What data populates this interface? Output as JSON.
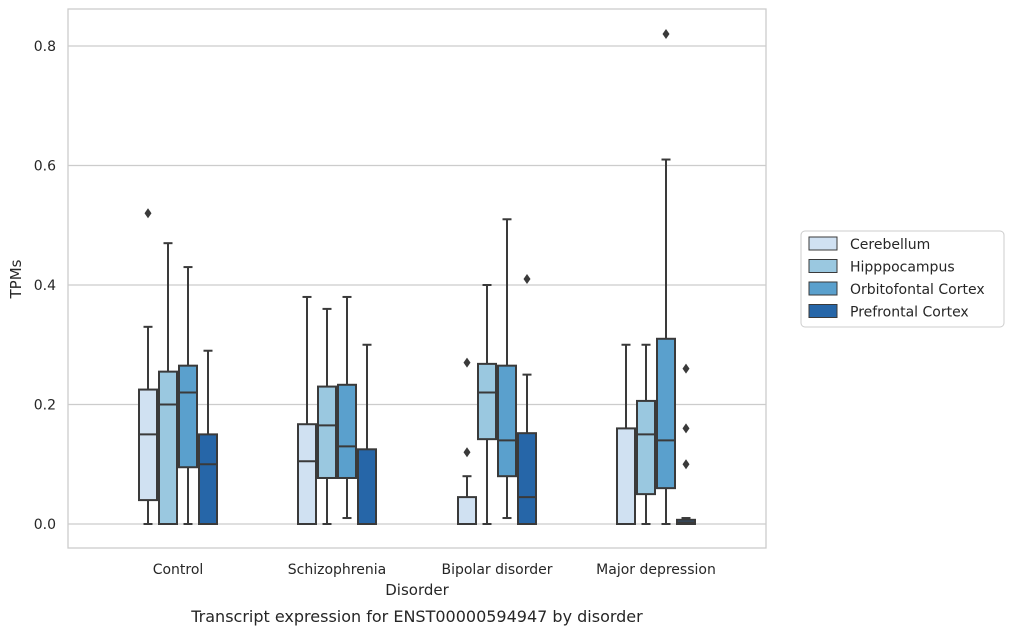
{
  "caption": "Transcript expression for ENST00000594947 by disorder",
  "chart_data": {
    "type": "box",
    "title": "",
    "xlabel": "Disorder",
    "ylabel": "TPMs",
    "ylim": [
      -0.04,
      0.86
    ],
    "yticks": [
      0.0,
      0.2,
      0.4,
      0.6,
      0.8
    ],
    "ytick_labels": [
      "0.0",
      "0.2",
      "0.4",
      "0.6",
      "0.8"
    ],
    "grid": "horizontal",
    "legend_position": "right",
    "categories": [
      "Control",
      "Schizophrenia",
      "Bipolar disorder",
      "Major depression"
    ],
    "series": [
      {
        "name": "Cerebellum",
        "color": "#d0e1f2",
        "boxes": [
          {
            "whislo": 0.0,
            "q1": 0.04,
            "med": 0.15,
            "q3": 0.225,
            "whishi": 0.33,
            "fliers": [
              0.52
            ]
          },
          {
            "whislo": 0.0,
            "q1": 0.0,
            "med": 0.105,
            "q3": 0.167,
            "whishi": 0.38,
            "fliers": []
          },
          {
            "whislo": 0.0,
            "q1": 0.0,
            "med": 0.0,
            "q3": 0.045,
            "whishi": 0.08,
            "fliers": [
              0.12,
              0.27
            ]
          },
          {
            "whislo": 0.0,
            "q1": 0.0,
            "med": 0.0,
            "q3": 0.16,
            "whishi": 0.3,
            "fliers": []
          }
        ]
      },
      {
        "name": "Hipppocampus",
        "color": "#9ac8e0",
        "boxes": [
          {
            "whislo": 0.0,
            "q1": 0.0,
            "med": 0.2,
            "q3": 0.255,
            "whishi": 0.47,
            "fliers": []
          },
          {
            "whislo": 0.0,
            "q1": 0.077,
            "med": 0.165,
            "q3": 0.23,
            "whishi": 0.36,
            "fliers": []
          },
          {
            "whislo": 0.0,
            "q1": 0.142,
            "med": 0.22,
            "q3": 0.268,
            "whishi": 0.4,
            "fliers": []
          },
          {
            "whislo": 0.0,
            "q1": 0.05,
            "med": 0.15,
            "q3": 0.206,
            "whishi": 0.3,
            "fliers": []
          }
        ]
      },
      {
        "name": "Orbitofontal Cortex",
        "color": "#5aa0cd",
        "boxes": [
          {
            "whislo": 0.0,
            "q1": 0.095,
            "med": 0.22,
            "q3": 0.265,
            "whishi": 0.43,
            "fliers": []
          },
          {
            "whislo": 0.01,
            "q1": 0.077,
            "med": 0.13,
            "q3": 0.233,
            "whishi": 0.38,
            "fliers": []
          },
          {
            "whislo": 0.01,
            "q1": 0.08,
            "med": 0.14,
            "q3": 0.265,
            "whishi": 0.51,
            "fliers": []
          },
          {
            "whislo": 0.0,
            "q1": 0.06,
            "med": 0.14,
            "q3": 0.31,
            "whishi": 0.61,
            "fliers": [
              0.82
            ]
          }
        ]
      },
      {
        "name": "Prefrontal Cortex",
        "color": "#2666a8",
        "boxes": [
          {
            "whislo": 0.0,
            "q1": 0.0,
            "med": 0.1,
            "q3": 0.15,
            "whishi": 0.29,
            "fliers": []
          },
          {
            "whislo": 0.0,
            "q1": 0.0,
            "med": 0.0,
            "q3": 0.125,
            "whishi": 0.3,
            "fliers": []
          },
          {
            "whislo": 0.0,
            "q1": 0.0,
            "med": 0.045,
            "q3": 0.152,
            "whishi": 0.25,
            "fliers": [
              0.41
            ]
          },
          {
            "whislo": 0.0,
            "q1": 0.0,
            "med": 0.003,
            "q3": 0.007,
            "whishi": 0.01,
            "fliers": [
              0.1,
              0.16,
              0.26
            ]
          }
        ]
      }
    ]
  }
}
